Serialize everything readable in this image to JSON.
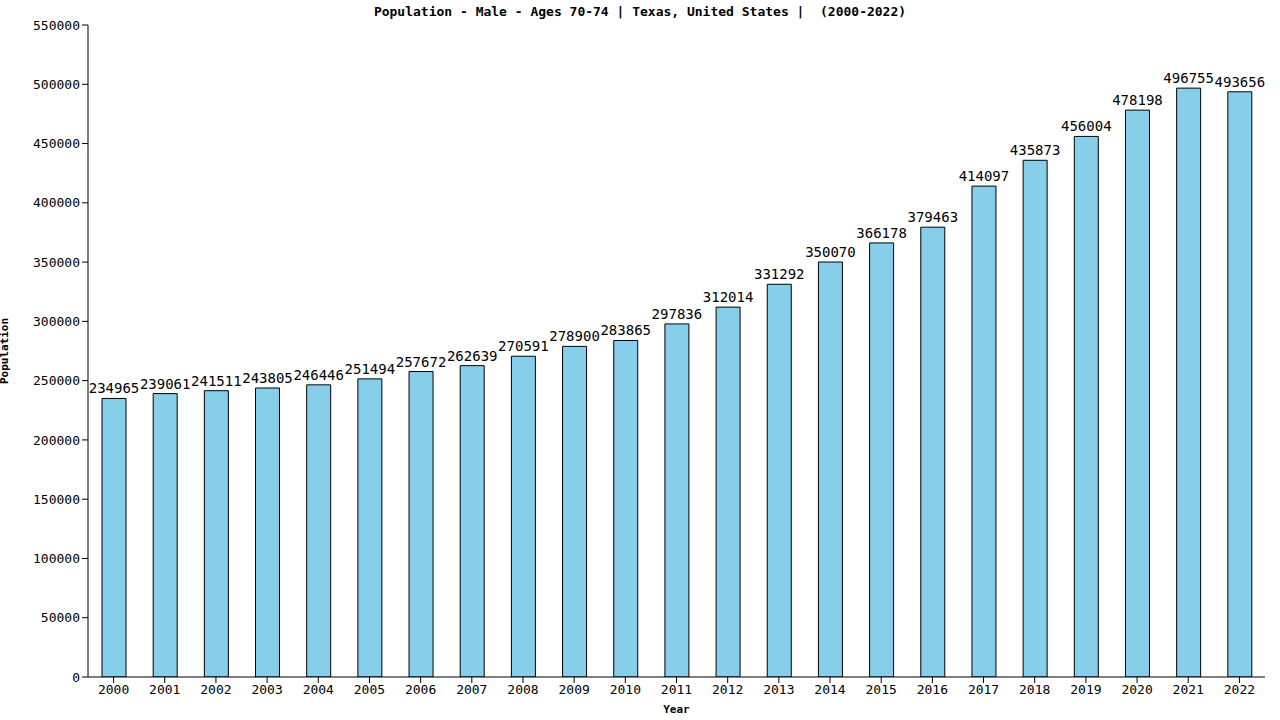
{
  "chart_data": {
    "type": "bar",
    "title": "Population - Male - Ages 70-74 | Texas, United States |  (2000-2022)",
    "x_label": "Year",
    "y_label": "Population",
    "categories": [
      "2000",
      "2001",
      "2002",
      "2003",
      "2004",
      "2005",
      "2006",
      "2007",
      "2008",
      "2009",
      "2010",
      "2011",
      "2012",
      "2013",
      "2014",
      "2015",
      "2016",
      "2017",
      "2018",
      "2019",
      "2020",
      "2021",
      "2022"
    ],
    "values": [
      234965,
      239061,
      241511,
      243805,
      246446,
      251494,
      257672,
      262639,
      270591,
      278900,
      283865,
      297836,
      312014,
      331292,
      350070,
      366178,
      379463,
      414097,
      435873,
      456004,
      478198,
      496755,
      493656
    ],
    "color": "#87ceeb",
    "ylim": [
      0,
      550000
    ],
    "yticks": [
      0,
      50000,
      100000,
      150000,
      200000,
      250000,
      300000,
      350000,
      400000,
      450000,
      500000,
      550000
    ],
    "grid": false,
    "data_labels": true
  }
}
